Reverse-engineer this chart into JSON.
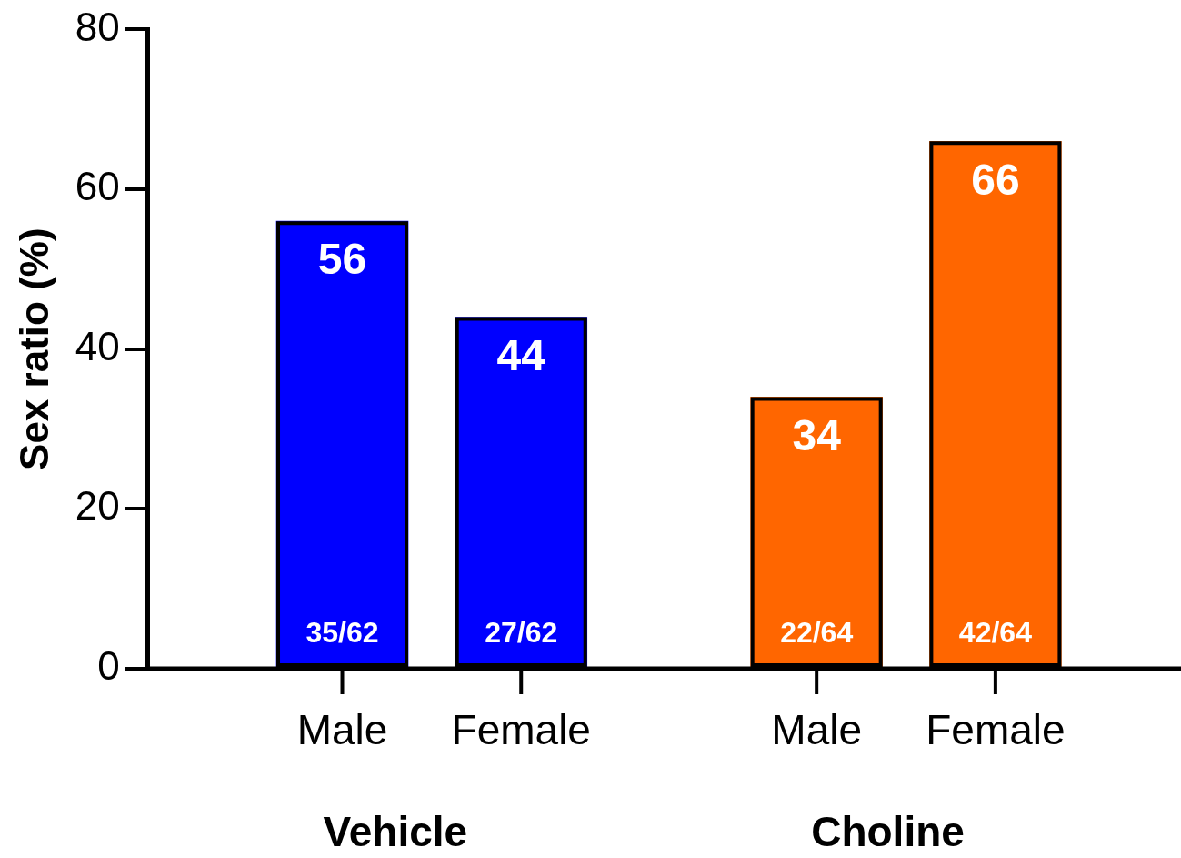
{
  "chart_data": {
    "type": "bar",
    "ylabel": "Sex ratio (%)",
    "categories": [
      "Male",
      "Female",
      "Male",
      "Female"
    ],
    "values": [
      56,
      44,
      34,
      66
    ],
    "colors": [
      "#0000ff",
      "#0000ff",
      "#ff6600",
      "#ff6600"
    ],
    "ylim": [
      0,
      80
    ],
    "yticks": [
      0,
      20,
      40,
      60,
      80
    ],
    "grid": false,
    "legend": false,
    "data_labels": true,
    "annotations": [
      "35/62",
      "27/62",
      "22/64",
      "42/64",
      "Vehicle",
      "Choline"
    ]
  }
}
